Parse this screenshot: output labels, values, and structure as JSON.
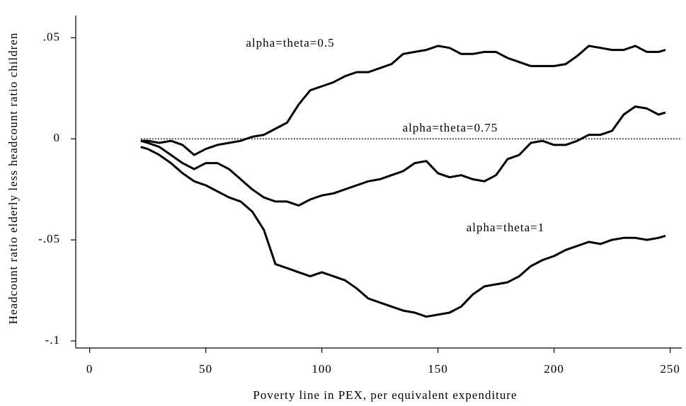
{
  "chart_data": {
    "type": "line",
    "x_label": "Poverty line in PEX, per equivalent expenditure",
    "y_label": "Headcount ratio elderly less headcount ratio children",
    "xlim": [
      -6,
      255
    ],
    "ylim": [
      -0.1035,
      0.061
    ],
    "xticks": [
      0,
      50,
      100,
      150,
      200,
      250
    ],
    "yticks": [
      {
        "value": 0.05,
        "label": ".05"
      },
      0,
      {
        "value": -0.05,
        "label": "-.05"
      },
      {
        "value": -0.1,
        "label": "-.1"
      }
    ],
    "hline": 0,
    "x": [
      22,
      25,
      30,
      35,
      40,
      45,
      50,
      55,
      60,
      65,
      70,
      75,
      80,
      85,
      90,
      95,
      100,
      105,
      110,
      115,
      120,
      125,
      130,
      135,
      140,
      145,
      150,
      155,
      160,
      165,
      170,
      175,
      180,
      185,
      190,
      195,
      200,
      205,
      210,
      215,
      220,
      225,
      230,
      235,
      240,
      245,
      248
    ],
    "series": [
      {
        "name": "alpha=theta=0.5",
        "color": "#000000",
        "values": [
          -0.001,
          -0.001,
          -0.002,
          -0.001,
          -0.003,
          -0.008,
          -0.005,
          -0.003,
          -0.002,
          -0.001,
          0.001,
          0.002,
          0.005,
          0.008,
          0.017,
          0.024,
          0.026,
          0.028,
          0.031,
          0.033,
          0.033,
          0.035,
          0.037,
          0.042,
          0.043,
          0.044,
          0.046,
          0.045,
          0.042,
          0.042,
          0.043,
          0.043,
          0.04,
          0.038,
          0.036,
          0.036,
          0.036,
          0.037,
          0.041,
          0.046,
          0.045,
          0.044,
          0.044,
          0.046,
          0.043,
          0.043,
          0.044
        ]
      },
      {
        "name": "alpha=theta=0.75",
        "color": "#000000",
        "values": [
          -0.001,
          -0.002,
          -0.004,
          -0.008,
          -0.012,
          -0.015,
          -0.012,
          -0.012,
          -0.015,
          -0.02,
          -0.025,
          -0.029,
          -0.031,
          -0.031,
          -0.033,
          -0.03,
          -0.028,
          -0.027,
          -0.025,
          -0.023,
          -0.021,
          -0.02,
          -0.018,
          -0.016,
          -0.012,
          -0.011,
          -0.017,
          -0.019,
          -0.018,
          -0.02,
          -0.021,
          -0.018,
          -0.01,
          -0.008,
          -0.002,
          -0.001,
          -0.003,
          -0.003,
          -0.001,
          0.002,
          0.002,
          0.004,
          0.012,
          0.016,
          0.015,
          0.012,
          0.013
        ]
      },
      {
        "name": "alpha=theta=1",
        "color": "#000000",
        "values": [
          -0.004,
          -0.005,
          -0.008,
          -0.012,
          -0.017,
          -0.021,
          -0.023,
          -0.026,
          -0.029,
          -0.031,
          -0.036,
          -0.045,
          -0.062,
          -0.064,
          -0.066,
          -0.068,
          -0.066,
          -0.068,
          -0.07,
          -0.074,
          -0.079,
          -0.081,
          -0.083,
          -0.085,
          -0.086,
          -0.088,
          -0.087,
          -0.086,
          -0.083,
          -0.077,
          -0.073,
          -0.072,
          -0.071,
          -0.068,
          -0.063,
          -0.06,
          -0.058,
          -0.055,
          -0.053,
          -0.051,
          -0.052,
          -0.05,
          -0.049,
          -0.049,
          -0.05,
          -0.049,
          -0.048
        ]
      }
    ]
  }
}
